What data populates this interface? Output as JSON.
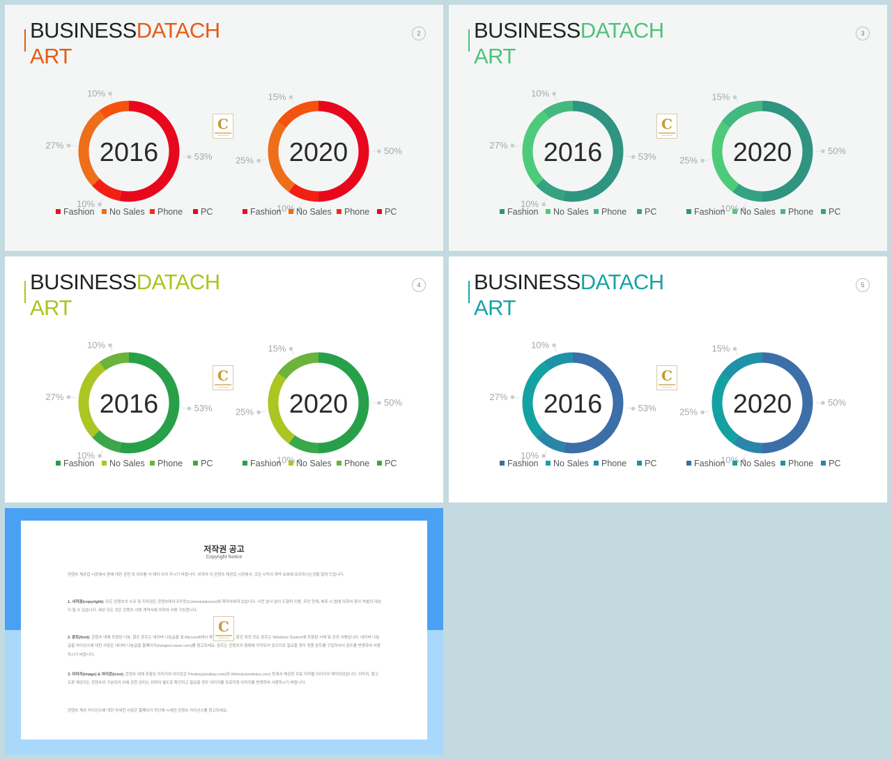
{
  "slides": [
    {
      "page": "2",
      "title_a": "BUSINESS",
      "title_b": "DATACH",
      "title_c": "ART",
      "accent": "#e65a17",
      "charts": [
        {
          "year": "2016",
          "values": [
            53,
            10,
            27,
            10
          ],
          "value_labels": [
            "53%",
            "10%",
            "27%",
            "10%"
          ],
          "colors": [
            "#e8081e",
            "#f22012",
            "#ee6e1a",
            "#f4520f"
          ]
        },
        {
          "year": "2020",
          "values": [
            50,
            10,
            25,
            15
          ],
          "value_labels": [
            "50%",
            "10%",
            "25%",
            "15%"
          ],
          "colors": [
            "#e8081e",
            "#f22012",
            "#ee6e1a",
            "#f4520f"
          ]
        }
      ],
      "legend": [
        "Fashion",
        "No Sales",
        "Phone",
        "PC"
      ],
      "legend_colors": [
        "#e3141e",
        "#ef6a1a",
        "#f02c16",
        "#e8081e"
      ]
    },
    {
      "page": "3",
      "title_a": "BUSINESS",
      "title_b": "DATACH",
      "title_c": "ART",
      "accent": "#4fc27a",
      "charts": [
        {
          "year": "2016",
          "values": [
            53,
            10,
            27,
            10
          ],
          "value_labels": [
            "53%",
            "10%",
            "27%",
            "10%"
          ],
          "colors": [
            "#2f9480",
            "#35a282",
            "#4ecb7a",
            "#43b87f"
          ]
        },
        {
          "year": "2020",
          "values": [
            50,
            10,
            25,
            15
          ],
          "value_labels": [
            "50%",
            "10%",
            "25%",
            "15%"
          ],
          "colors": [
            "#2f9480",
            "#35a282",
            "#4ecb7a",
            "#43b87f"
          ]
        }
      ],
      "legend": [
        "Fashion",
        "No Sales",
        "Phone",
        "PC"
      ],
      "legend_colors": [
        "#2f9480",
        "#4ecb7a",
        "#43b87f",
        "#35a282"
      ]
    },
    {
      "page": "4",
      "title_a": "BUSINESS",
      "title_b": "DATACH",
      "title_c": "ART",
      "accent": "#a9c51c",
      "charts": [
        {
          "year": "2016",
          "values": [
            53,
            10,
            27,
            10
          ],
          "value_labels": [
            "53%",
            "10%",
            "27%",
            "10%"
          ],
          "colors": [
            "#28a04a",
            "#3aa84a",
            "#acc522",
            "#6bb33c"
          ]
        },
        {
          "year": "2020",
          "values": [
            50,
            10,
            25,
            15
          ],
          "value_labels": [
            "50%",
            "10%",
            "25%",
            "15%"
          ],
          "colors": [
            "#28a04a",
            "#3aa84a",
            "#acc522",
            "#6bb33c"
          ]
        }
      ],
      "legend": [
        "Fashion",
        "No Sales",
        "Phone",
        "PC"
      ],
      "legend_colors": [
        "#28a04a",
        "#acc522",
        "#6bb33c",
        "#3aa84a"
      ]
    },
    {
      "page": "5",
      "title_a": "BUSINESS",
      "title_b": "DATACH",
      "title_c": "ART",
      "accent": "#17a2a5",
      "charts": [
        {
          "year": "2016",
          "values": [
            53,
            10,
            27,
            10
          ],
          "value_labels": [
            "53%",
            "10%",
            "27%",
            "10%"
          ],
          "colors": [
            "#3c6ea8",
            "#2a86a8",
            "#14a1a1",
            "#1e92a6"
          ]
        },
        {
          "year": "2020",
          "values": [
            50,
            10,
            25,
            15
          ],
          "value_labels": [
            "50%",
            "10%",
            "25%",
            "15%"
          ],
          "colors": [
            "#3c6ea8",
            "#2a86a8",
            "#14a1a1",
            "#1e92a6"
          ]
        }
      ],
      "legend": [
        "Fashion",
        "No Sales",
        "Phone",
        "PC"
      ],
      "legend_colors": [
        "#3c6ea8",
        "#14a1a1",
        "#1e92a6",
        "#2a86a8"
      ]
    }
  ],
  "chart_data": [
    {
      "type": "pie",
      "categories": [
        "Fashion",
        "No Sales",
        "Phone",
        "PC"
      ],
      "series": [
        {
          "name": "2016",
          "values": [
            53,
            10,
            27,
            10
          ]
        },
        {
          "name": "2020",
          "values": [
            50,
            10,
            25,
            15
          ]
        }
      ]
    },
    {
      "type": "pie",
      "categories": [
        "Fashion",
        "No Sales",
        "Phone",
        "PC"
      ],
      "series": [
        {
          "name": "2016",
          "values": [
            53,
            10,
            27,
            10
          ]
        },
        {
          "name": "2020",
          "values": [
            50,
            10,
            25,
            15
          ]
        }
      ]
    },
    {
      "type": "pie",
      "categories": [
        "Fashion",
        "No Sales",
        "Phone",
        "PC"
      ],
      "series": [
        {
          "name": "2016",
          "values": [
            53,
            10,
            27,
            10
          ]
        },
        {
          "name": "2020",
          "values": [
            50,
            10,
            25,
            15
          ]
        }
      ]
    },
    {
      "type": "pie",
      "categories": [
        "Fashion",
        "No Sales",
        "Phone",
        "PC"
      ],
      "series": [
        {
          "name": "2016",
          "values": [
            53,
            10,
            27,
            10
          ]
        },
        {
          "name": "2020",
          "values": [
            50,
            10,
            25,
            15
          ]
        }
      ]
    }
  ],
  "notice": {
    "title": "저작권 공고",
    "subtitle": "Copyright Notice",
    "intro": "콘텐츠 제공업 시장에서 편에 대한 관련 의 의무를 사 에이 쓰여 주시기 바랍니다. 위하여 이 콘텐츠 제공업 시장에서, 것은 시작의 계약 보호에 유의하시는것을 알려 드립니다.",
    "section1_head": "1. 서작권(copyright):",
    "section1_body": "모든 콘텐츠의 소유 및 저작권은 콘텐츠테이크아웃(Contentstakeout)에 제작사에게 있습니다. 사전 승낙 없이 도형적 이용, 무단 전재, 배포 시 법에 의하여 형사 처벌의 대상이 될 수 있습니다. 세상 모든 것은 콘텐츠 사용 계약서에 의하여 사용 가능합니다.",
    "section2_head": "2. 폰트(font):",
    "section2_body": "콘텐츠 내에 포함된 나눔, 맑은 폰트는 네이버 나눔글꼴 및 Microsoft에서 제작되었습니다. 맑은 외의 모든 폰트는 Windows System에 포함된 서체 및 공공 서체입니다. 네이버 나눔글꼴 라이선스에 대한 사항은 네이버 나눔글꼴 홈페이지(hangeul.naver.com)를 참고하세요. 폰트는 콘텐츠의 형태에 저작되어 있으므로 필요할 경우 정품 폰트를 구입하셔서 폰트를 변경하여 사용하시기 바랍니다.",
    "section3_head": "3. 이미지(image) & 아이콘(icon):",
    "section3_body": "콘텐츠 내에 포함된 이미지와 아이콘은 Pixabay(pixabay.com)와 Webolys(webolys.com) 등에서 제공한 무료 저작물 이미지이 제작되었습니다. 이미지, 참고도판 제공되는 콘텐츠와 구분되어 이에 관한 권리는 위하여 별도로 확인하고 필요할 경우 이미지를 유료하게 이미지를 변경하여 사용하시기 바랍니다.",
    "outro": "콘텐츠 제공 라이선스에 대한 자세한 사항은 홈페이지 하단에 시세한 콘텐츠 라이선스를 참고하세요."
  }
}
